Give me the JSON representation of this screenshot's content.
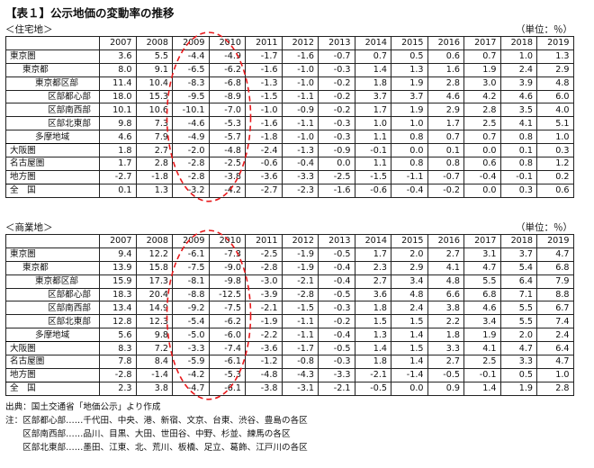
{
  "title": "【表１】公示地価の変動率の推移",
  "residential": {
    "label": "＜住宅地＞",
    "unit": "（単位：％）",
    "years": [
      "2007",
      "2008",
      "2009",
      "2010",
      "2011",
      "2012",
      "2013",
      "2014",
      "2015",
      "2016",
      "2017",
      "2018",
      "2019"
    ],
    "rows": [
      {
        "name": "東京圏",
        "values": [
          "3.6",
          "5.5",
          "-4.4",
          "-4.9",
          "-1.7",
          "-1.6",
          "-0.7",
          "0.7",
          "0.5",
          "0.6",
          "0.7",
          "1.0",
          "1.3"
        ]
      },
      {
        "name": "東京都",
        "values": [
          "8.0",
          "9.1",
          "-6.5",
          "-6.2",
          "-1.6",
          "-1.0",
          "-0.3",
          "1.4",
          "1.3",
          "1.6",
          "1.9",
          "2.4",
          "2.9"
        ]
      },
      {
        "name": "東京都区部",
        "values": [
          "11.4",
          "10.4",
          "-8.3",
          "-6.8",
          "-1.3",
          "-1.0",
          "-0.2",
          "1.8",
          "1.9",
          "2.8",
          "3.0",
          "3.9",
          "4.8"
        ]
      },
      {
        "name": "区部都心部",
        "values": [
          "18.0",
          "15.3",
          "-9.5",
          "-8.9",
          "-1.5",
          "-1.1",
          "-0.2",
          "3.7",
          "3.7",
          "4.6",
          "4.2",
          "4.6",
          "6.0"
        ]
      },
      {
        "name": "区部南西部",
        "values": [
          "10.1",
          "10.6",
          "-10.1",
          "-7.0",
          "-1.0",
          "-0.9",
          "-0.2",
          "1.7",
          "1.9",
          "2.9",
          "2.8",
          "3.5",
          "4.0"
        ]
      },
      {
        "name": "区部北東部",
        "values": [
          "9.8",
          "7.3",
          "-4.6",
          "-5.3",
          "-1.6",
          "-1.1",
          "-0.3",
          "1.0",
          "1.0",
          "1.7",
          "2.5",
          "4.1",
          "5.1"
        ]
      },
      {
        "name": "多摩地域",
        "values": [
          "4.6",
          "7.9",
          "-4.9",
          "-5.7",
          "-1.8",
          "-1.0",
          "-0.3",
          "1.1",
          "0.8",
          "0.7",
          "0.7",
          "0.8",
          "1.0"
        ]
      },
      {
        "name": "大阪圏",
        "values": [
          "1.8",
          "2.7",
          "-2.0",
          "-4.8",
          "-2.4",
          "-1.3",
          "-0.9",
          "-0.1",
          "0.0",
          "0.1",
          "0.0",
          "0.1",
          "0.3"
        ]
      },
      {
        "name": "名古屋圏",
        "values": [
          "1.7",
          "2.8",
          "-2.8",
          "-2.5",
          "-0.6",
          "-0.4",
          "0.0",
          "1.1",
          "0.8",
          "0.8",
          "0.6",
          "0.8",
          "1.2"
        ]
      },
      {
        "name": "地方圏",
        "values": [
          "-2.7",
          "-1.8",
          "-2.8",
          "-3.8",
          "-3.6",
          "-3.3",
          "-2.5",
          "-1.5",
          "-1.1",
          "-0.7",
          "-0.4",
          "-0.1",
          "0.2"
        ]
      },
      {
        "name": "全　国",
        "values": [
          "0.1",
          "1.3",
          "-3.2",
          "-4.2",
          "-2.7",
          "-2.3",
          "-1.6",
          "-0.6",
          "-0.4",
          "-0.2",
          "0.0",
          "0.3",
          "0.6"
        ]
      }
    ]
  },
  "commercial": {
    "label": "＜商業地＞",
    "unit": "（単位：％）",
    "years": [
      "2007",
      "2008",
      "2009",
      "2010",
      "2011",
      "2012",
      "2013",
      "2014",
      "2015",
      "2016",
      "2017",
      "2018",
      "2019"
    ],
    "rows": [
      {
        "name": "東京圏",
        "values": [
          "9.4",
          "12.2",
          "-6.1",
          "-7.3",
          "-2.5",
          "-1.9",
          "-0.5",
          "1.7",
          "2.0",
          "2.7",
          "3.1",
          "3.7",
          "4.7"
        ]
      },
      {
        "name": "東京都",
        "values": [
          "13.9",
          "15.8",
          "-7.5",
          "-9.0",
          "-2.8",
          "-1.9",
          "-0.4",
          "2.3",
          "2.9",
          "4.1",
          "4.7",
          "5.4",
          "6.8"
        ]
      },
      {
        "name": "東京都区部",
        "values": [
          "15.9",
          "17.3",
          "-8.1",
          "-9.8",
          "-3.0",
          "-2.1",
          "-0.4",
          "2.7",
          "3.4",
          "4.8",
          "5.5",
          "6.4",
          "7.9"
        ]
      },
      {
        "name": "区部都心部",
        "values": [
          "18.3",
          "20.4",
          "-8.8",
          "-12.5",
          "-3.9",
          "-2.8",
          "-0.5",
          "3.6",
          "4.8",
          "6.6",
          "6.8",
          "7.1",
          "8.8"
        ]
      },
      {
        "name": "区部南西部",
        "values": [
          "13.4",
          "14.9",
          "-9.2",
          "-7.5",
          "-2.1",
          "-1.5",
          "-0.3",
          "1.8",
          "2.4",
          "3.8",
          "4.6",
          "5.5",
          "6.7"
        ]
      },
      {
        "name": "区部北東部",
        "values": [
          "12.8",
          "12.3",
          "-5.4",
          "-6.2",
          "-1.9",
          "-1.1",
          "-0.2",
          "1.5",
          "1.5",
          "2.2",
          "3.4",
          "5.5",
          "7.4"
        ]
      },
      {
        "name": "多摩地域",
        "values": [
          "5.6",
          "9.8",
          "-5.0",
          "-6.0",
          "-2.2",
          "-1.1",
          "-0.4",
          "1.3",
          "1.4",
          "1.8",
          "1.9",
          "2.0",
          "2.4"
        ]
      },
      {
        "name": "大阪圏",
        "values": [
          "8.3",
          "7.2",
          "-3.3",
          "-7.4",
          "-3.6",
          "-1.7",
          "-0.5",
          "1.4",
          "1.5",
          "3.3",
          "4.1",
          "4.7",
          "6.4"
        ]
      },
      {
        "name": "名古屋圏",
        "values": [
          "7.8",
          "8.4",
          "-5.9",
          "-6.1",
          "-1.2",
          "-0.8",
          "-0.3",
          "1.8",
          "1.4",
          "2.7",
          "2.5",
          "3.3",
          "4.7"
        ]
      },
      {
        "name": "地方圏",
        "values": [
          "-2.8",
          "-1.4",
          "-4.2",
          "-5.3",
          "-4.8",
          "-4.3",
          "-3.3",
          "-2.1",
          "-1.4",
          "-0.5",
          "-0.1",
          "0.5",
          "1.0"
        ]
      },
      {
        "name": "全　国",
        "values": [
          "2.3",
          "3.8",
          "-4.7",
          "-6.1",
          "-3.8",
          "-3.1",
          "-2.1",
          "-0.5",
          "0.0",
          "0.9",
          "1.4",
          "1.9",
          "2.8"
        ]
      }
    ]
  },
  "notes": [
    "出典：国土交通省「地価公示」より作成",
    "注：区部都心部……千代田、中央、港、新宿、文京、台東、渋谷、豊島の各区",
    "　　区部南西部……品川、目黒、大田、世田谷、中野、杉並、練馬の各区",
    "　　区部北東部……墨田、江東、北、荒川、板橋、足立、葛飾、江戸川の各区"
  ],
  "annotation_color": "#e8191c"
}
